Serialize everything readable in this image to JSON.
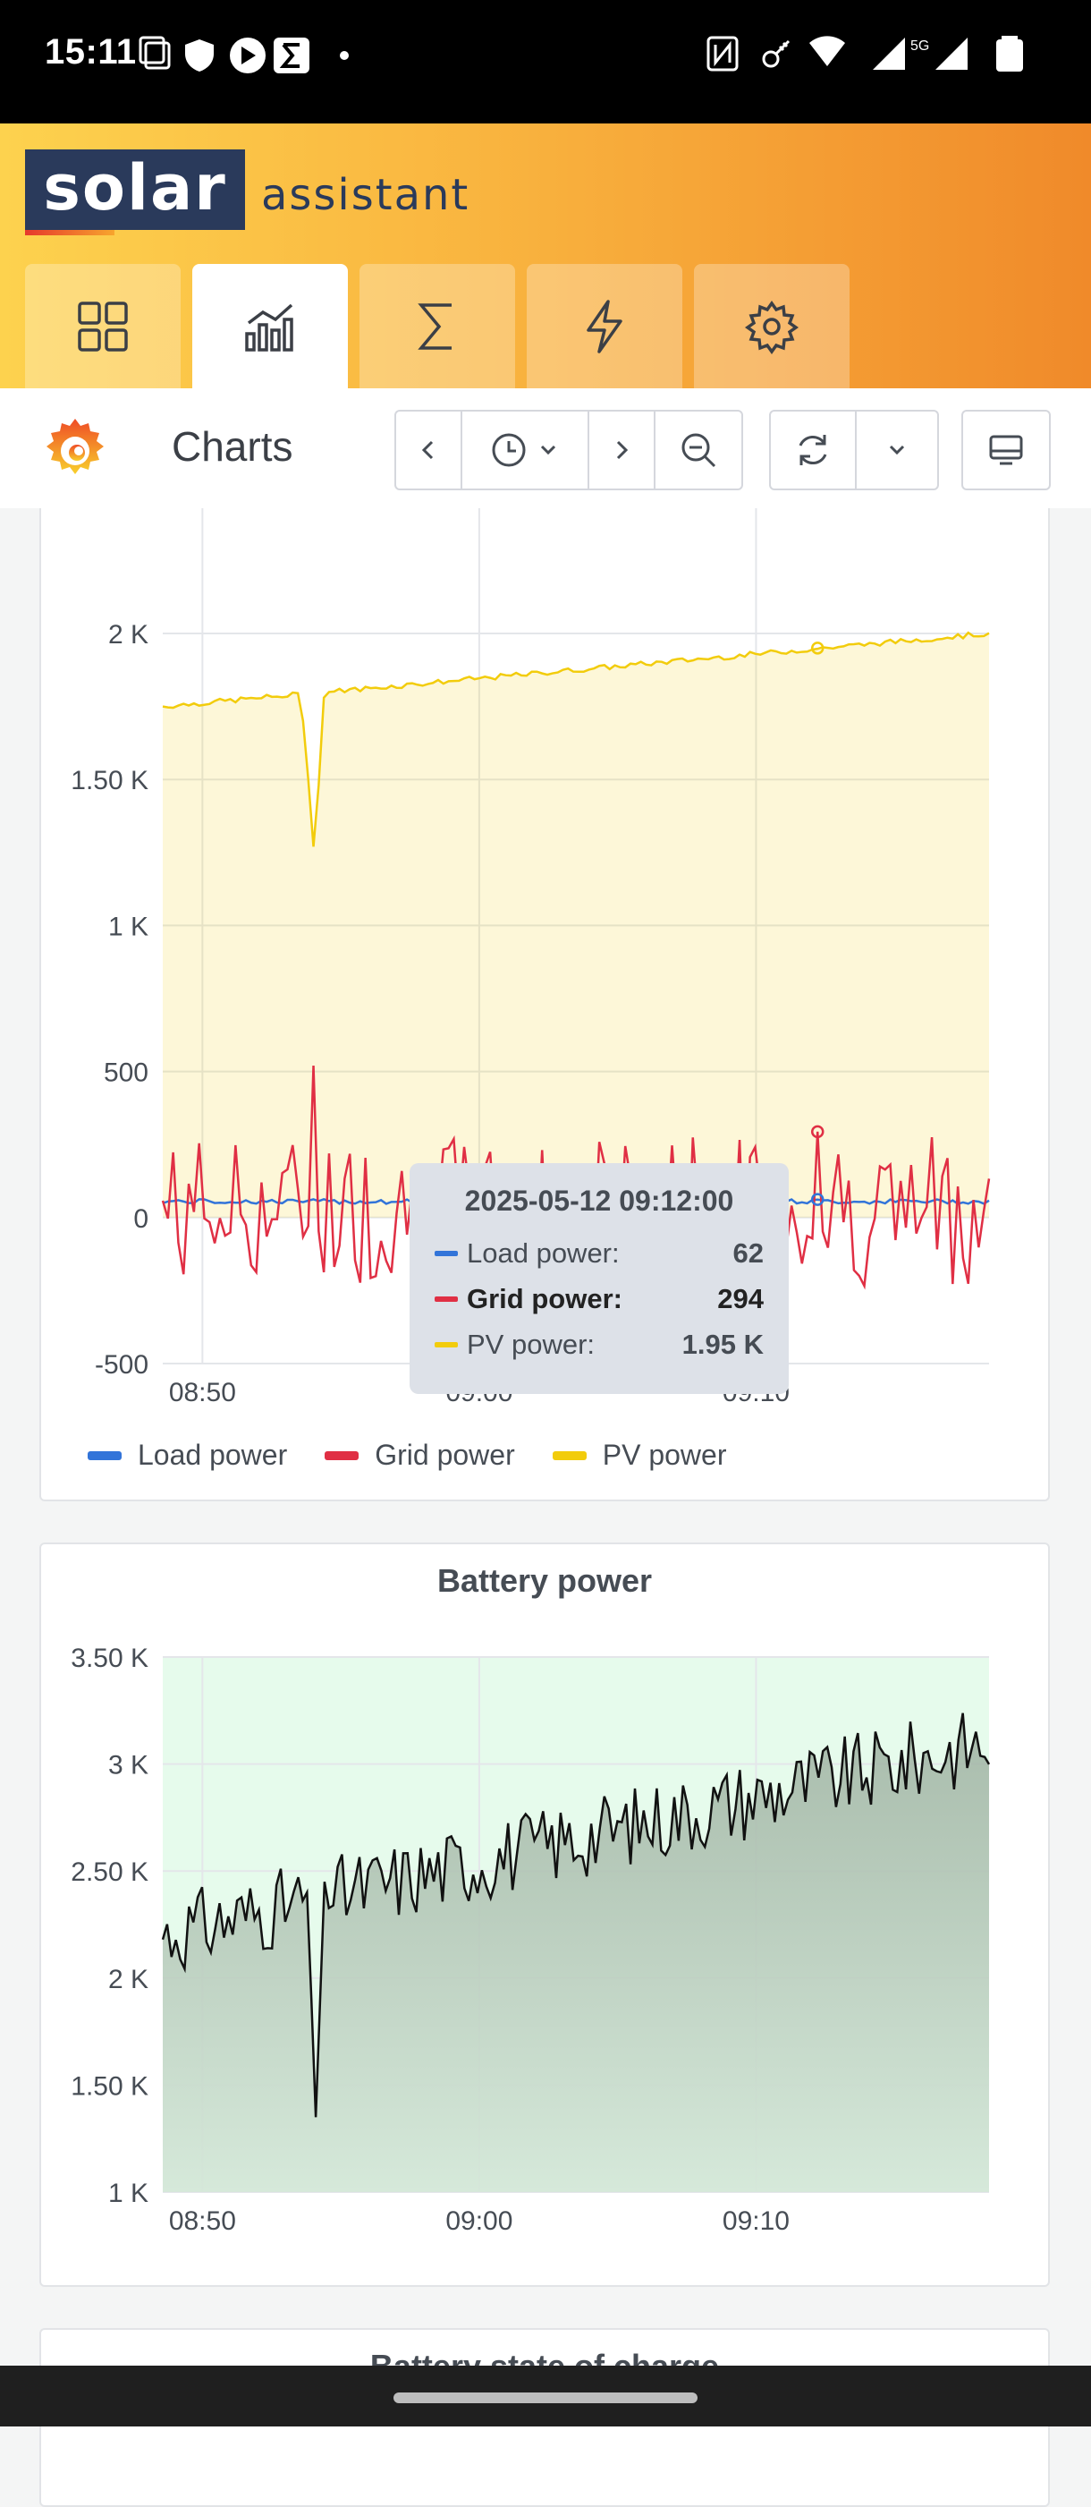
{
  "status_bar": {
    "time": "15:11",
    "network": "5G"
  },
  "app": {
    "logo_word": "solar",
    "logo_sub": "assistant"
  },
  "nav_tabs": [
    {
      "name": "dashboard",
      "icon": "grid-icon",
      "active": false
    },
    {
      "name": "charts",
      "icon": "chart-icon",
      "active": true
    },
    {
      "name": "totals",
      "icon": "sigma-icon",
      "active": false
    },
    {
      "name": "power",
      "icon": "lightning-icon",
      "active": false
    },
    {
      "name": "settings",
      "icon": "gear-icon",
      "active": false
    }
  ],
  "toolbar": {
    "title": "Charts"
  },
  "chart_data": [
    {
      "type": "area",
      "title": "",
      "x": [
        "08:50",
        "09:00",
        "09:10"
      ],
      "ylim": [
        -500,
        2000
      ],
      "yticks": [
        "2 K",
        "1.50 K",
        "1 K",
        "500",
        "0",
        "-500"
      ],
      "xticks": [
        "08:50",
        "09:00",
        "09:10"
      ],
      "series": [
        {
          "name": "Load power",
          "color": "#3274d9",
          "approx": "around 60 W throughout"
        },
        {
          "name": "Grid power",
          "color": "#e02f44",
          "approx": "fluctuates between about -300 and 300, spike to ~520 near 08:54"
        },
        {
          "name": "PV power",
          "color": "#f2cc0c",
          "approx": "rises from ~1.75 K at 08:48 to ~2 K at 09:18, dip to ~1.27 K near 08:54"
        }
      ],
      "legend": [
        "Load power",
        "Grid power",
        "PV power"
      ],
      "legend_position": "bottom",
      "tooltip": {
        "timestamp": "2025-05-12 09:12:00",
        "rows": [
          {
            "label": "Load power:",
            "value": "62",
            "color": "#3274d9"
          },
          {
            "label": "Grid power:",
            "value": "294",
            "color": "#e02f44"
          },
          {
            "label": "PV power:",
            "value": "1.95 K",
            "color": "#f2cc0c"
          }
        ]
      }
    },
    {
      "type": "area",
      "title": "Battery power",
      "ylim": [
        1000,
        3500
      ],
      "yticks": [
        "3.50 K",
        "3 K",
        "2.50 K",
        "2 K",
        "1.50 K",
        "1 K"
      ],
      "xticks": [
        "08:50",
        "09:00",
        "09:10"
      ],
      "series": [
        {
          "name": "Battery power",
          "color": "#000000",
          "approx": "rises from ~2.2 K to ~3.1 K with dip to ~1.35 K near 08:54"
        }
      ]
    }
  ],
  "next_panel": {
    "title": "Battery state of charge"
  }
}
